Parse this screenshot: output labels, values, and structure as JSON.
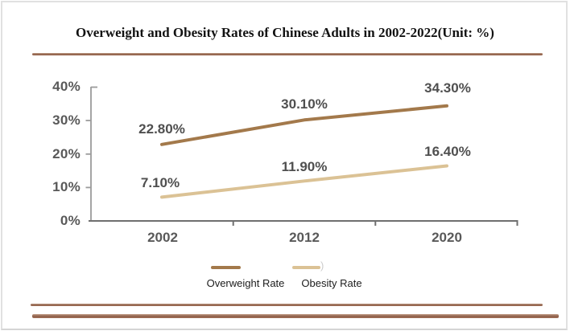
{
  "title": "Overweight and Obesity Rates of Chinese Adults in 2002-2022(Unit: %)",
  "chart_data": {
    "type": "line",
    "title": "Overweight and Obesity Rates of Chinese Adults in 2002-2022",
    "unit": "%",
    "categories": [
      "2002",
      "2012",
      "2020"
    ],
    "ytick_labels": [
      "40%",
      "30%",
      "20%",
      "10%",
      "0%"
    ],
    "ylim": [
      0,
      40
    ],
    "grid": false,
    "legend_position": "bottom",
    "series": [
      {
        "name": "Overweight Rate",
        "values": [
          22.8,
          30.1,
          34.3
        ],
        "labels": [
          "22.80%",
          "30.10%",
          "34.30%"
        ],
        "color": "#a3794b"
      },
      {
        "name": "Obesity Rate",
        "values": [
          7.1,
          11.9,
          16.4
        ],
        "labels": [
          "7.10%",
          "11.90%",
          "16.40%"
        ],
        "color": "#dbc295"
      }
    ],
    "stray_glyph": ")"
  },
  "theme": {
    "divider_brown": "#96684f",
    "axis_gray": "#8c8c8c",
    "tick_label_gray": "#595959",
    "legend_text": "#1c1c1c"
  }
}
